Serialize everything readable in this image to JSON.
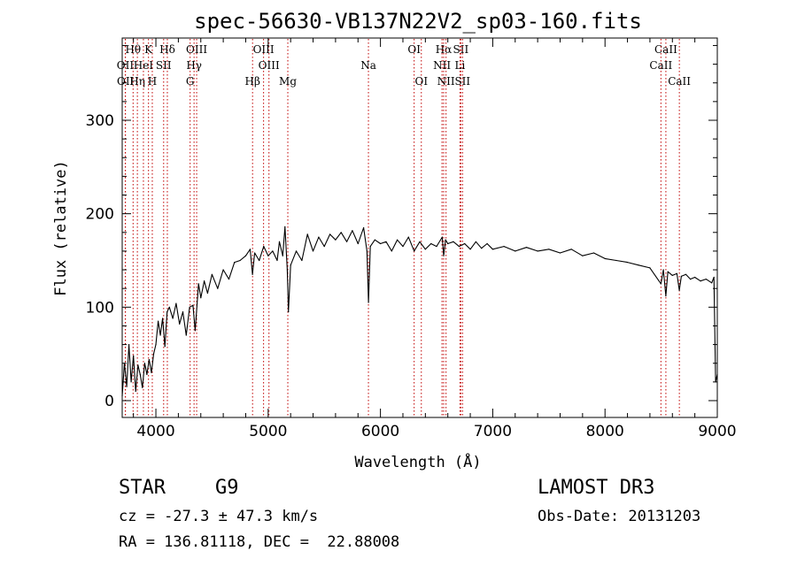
{
  "chart_data": {
    "type": "line",
    "title": "spec-56630-VB137N22V2_sp03-160.fits",
    "xlabel": "Wavelength (Å)",
    "ylabel": "Flux (relative)",
    "xlim": [
      3700,
      9000
    ],
    "ylim": [
      -18,
      388
    ],
    "xticks": [
      4000,
      5000,
      6000,
      7000,
      8000,
      9000
    ],
    "yticks": [
      0,
      100,
      200,
      300
    ],
    "grid": false,
    "series": [
      {
        "name": "flux",
        "color": "#000000",
        "points": [
          [
            3700,
            5
          ],
          [
            3720,
            40
          ],
          [
            3740,
            15
          ],
          [
            3760,
            60
          ],
          [
            3780,
            20
          ],
          [
            3800,
            48
          ],
          [
            3820,
            10
          ],
          [
            3840,
            38
          ],
          [
            3860,
            28
          ],
          [
            3880,
            14
          ],
          [
            3900,
            40
          ],
          [
            3920,
            28
          ],
          [
            3940,
            44
          ],
          [
            3960,
            30
          ],
          [
            3980,
            50
          ],
          [
            4000,
            60
          ],
          [
            4020,
            85
          ],
          [
            4040,
            70
          ],
          [
            4060,
            88
          ],
          [
            4080,
            58
          ],
          [
            4100,
            95
          ],
          [
            4120,
            100
          ],
          [
            4150,
            88
          ],
          [
            4180,
            104
          ],
          [
            4210,
            82
          ],
          [
            4240,
            95
          ],
          [
            4270,
            70
          ],
          [
            4300,
            100
          ],
          [
            4330,
            102
          ],
          [
            4350,
            75
          ],
          [
            4380,
            125
          ],
          [
            4400,
            110
          ],
          [
            4430,
            128
          ],
          [
            4460,
            115
          ],
          [
            4500,
            135
          ],
          [
            4550,
            120
          ],
          [
            4600,
            140
          ],
          [
            4650,
            130
          ],
          [
            4700,
            148
          ],
          [
            4750,
            150
          ],
          [
            4800,
            155
          ],
          [
            4840,
            162
          ],
          [
            4860,
            135
          ],
          [
            4880,
            158
          ],
          [
            4920,
            150
          ],
          [
            4960,
            165
          ],
          [
            5000,
            155
          ],
          [
            5040,
            160
          ],
          [
            5080,
            150
          ],
          [
            5100,
            170
          ],
          [
            5130,
            155
          ],
          [
            5150,
            186
          ],
          [
            5170,
            140
          ],
          [
            5180,
            95
          ],
          [
            5200,
            145
          ],
          [
            5250,
            160
          ],
          [
            5300,
            150
          ],
          [
            5350,
            178
          ],
          [
            5400,
            160
          ],
          [
            5450,
            175
          ],
          [
            5500,
            165
          ],
          [
            5550,
            178
          ],
          [
            5600,
            172
          ],
          [
            5650,
            180
          ],
          [
            5700,
            170
          ],
          [
            5750,
            182
          ],
          [
            5800,
            168
          ],
          [
            5850,
            185
          ],
          [
            5880,
            160
          ],
          [
            5893,
            105
          ],
          [
            5910,
            165
          ],
          [
            5950,
            172
          ],
          [
            6000,
            168
          ],
          [
            6050,
            170
          ],
          [
            6100,
            160
          ],
          [
            6150,
            172
          ],
          [
            6200,
            165
          ],
          [
            6250,
            175
          ],
          [
            6300,
            160
          ],
          [
            6350,
            170
          ],
          [
            6400,
            162
          ],
          [
            6450,
            168
          ],
          [
            6500,
            165
          ],
          [
            6550,
            175
          ],
          [
            6563,
            155
          ],
          [
            6580,
            172
          ],
          [
            6600,
            168
          ],
          [
            6650,
            170
          ],
          [
            6700,
            165
          ],
          [
            6750,
            168
          ],
          [
            6800,
            162
          ],
          [
            6850,
            170
          ],
          [
            6900,
            163
          ],
          [
            6950,
            168
          ],
          [
            7000,
            162
          ],
          [
            7100,
            165
          ],
          [
            7200,
            160
          ],
          [
            7300,
            164
          ],
          [
            7400,
            160
          ],
          [
            7500,
            162
          ],
          [
            7600,
            158
          ],
          [
            7700,
            162
          ],
          [
            7800,
            155
          ],
          [
            7900,
            158
          ],
          [
            8000,
            152
          ],
          [
            8100,
            150
          ],
          [
            8200,
            148
          ],
          [
            8300,
            145
          ],
          [
            8400,
            142
          ],
          [
            8498,
            125
          ],
          [
            8520,
            140
          ],
          [
            8542,
            112
          ],
          [
            8560,
            138
          ],
          [
            8600,
            134
          ],
          [
            8640,
            136
          ],
          [
            8662,
            118
          ],
          [
            8680,
            133
          ],
          [
            8720,
            135
          ],
          [
            8760,
            130
          ],
          [
            8800,
            132
          ],
          [
            8850,
            128
          ],
          [
            8900,
            130
          ],
          [
            8950,
            126
          ],
          [
            8970,
            132
          ],
          [
            8985,
            20
          ],
          [
            9000,
            28
          ]
        ]
      }
    ],
    "spectral_lines": [
      {
        "label": "Hθ",
        "wavelength": 3797,
        "row": 0
      },
      {
        "label": "OII",
        "wavelength": 3727,
        "row": 1
      },
      {
        "label": "OII",
        "wavelength": 3729,
        "row": 2
      },
      {
        "label": "Hη",
        "wavelength": 3835,
        "row": 2
      },
      {
        "label": "HeI",
        "wavelength": 3889,
        "row": 1
      },
      {
        "label": "K",
        "wavelength": 3934,
        "row": 0
      },
      {
        "label": "SII",
        "wavelength": 4069,
        "row": 1
      },
      {
        "label": "H",
        "wavelength": 3968,
        "row": 2
      },
      {
        "label": "Hδ",
        "wavelength": 4102,
        "row": 0
      },
      {
        "label": "OIII",
        "wavelength": 4363,
        "row": 0
      },
      {
        "label": "Hγ",
        "wavelength": 4340,
        "row": 1
      },
      {
        "label": "G",
        "wavelength": 4305,
        "row": 2
      },
      {
        "label": "Hβ",
        "wavelength": 4861,
        "row": 2
      },
      {
        "label": "OIII",
        "wavelength": 4959,
        "row": 0
      },
      {
        "label": "OIII",
        "wavelength": 5007,
        "row": 1
      },
      {
        "label": "Mg",
        "wavelength": 5175,
        "row": 2
      },
      {
        "label": "Na",
        "wavelength": 5893,
        "row": 1
      },
      {
        "label": "OI",
        "wavelength": 6300,
        "row": 0
      },
      {
        "label": "OI",
        "wavelength": 6364,
        "row": 2
      },
      {
        "label": "Hα",
        "wavelength": 6563,
        "row": 0
      },
      {
        "label": "SII",
        "wavelength": 6716,
        "row": 0
      },
      {
        "label": "NII",
        "wavelength": 6548,
        "row": 1
      },
      {
        "label": "Li",
        "wavelength": 6708,
        "row": 1
      },
      {
        "label": "NII",
        "wavelength": 6584,
        "row": 2
      },
      {
        "label": "SII",
        "wavelength": 6731,
        "row": 2
      },
      {
        "label": "CaII",
        "wavelength": 8542,
        "row": 0
      },
      {
        "label": "CaII",
        "wavelength": 8498,
        "row": 1
      },
      {
        "label": "CaII",
        "wavelength": 8662,
        "row": 2
      }
    ],
    "line_color": "#c00000"
  },
  "info": {
    "class": "STAR",
    "subclass": "G9",
    "redshift": "cz = -27.3 ± 47.3 km/s",
    "coords": "RA = 136.81118, DEC =  22.88008",
    "survey": "LAMOST DR3",
    "obs_date": "Obs-Date: 20131203"
  }
}
